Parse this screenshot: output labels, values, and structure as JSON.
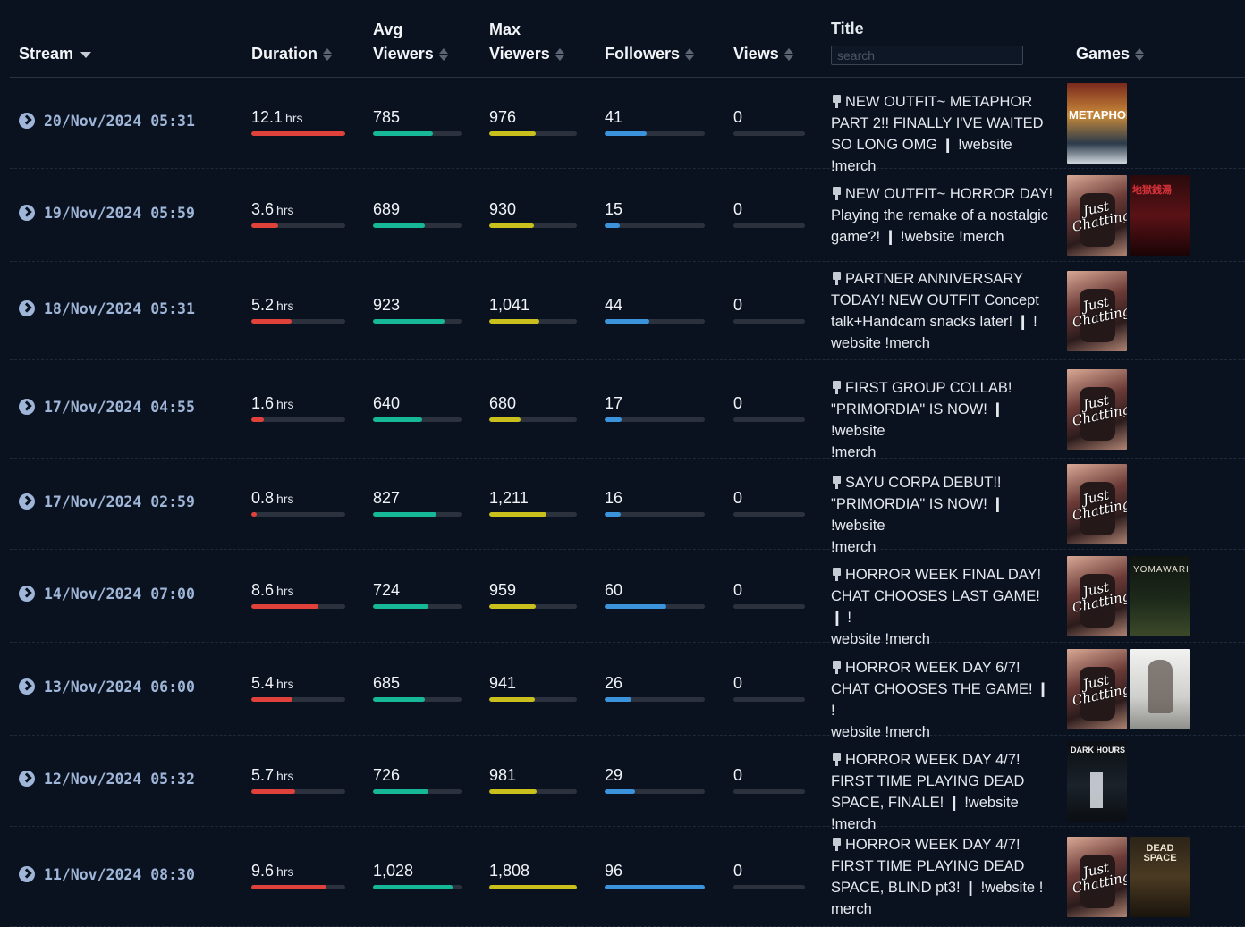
{
  "header": {
    "stream": "Stream",
    "duration": "Duration",
    "avg_viewers": [
      "Avg",
      "Viewers"
    ],
    "max_viewers": [
      "Max",
      "Viewers"
    ],
    "followers": "Followers",
    "views": "Views",
    "title": "Title",
    "search_placeholder": "search",
    "games": "Games"
  },
  "rows": [
    {
      "date": "20/Nov/2024 05:31",
      "duration": "12.1",
      "unit": "hrs",
      "duration_fill": 1.0,
      "avg": "785",
      "avg_fill": 0.68,
      "max": "976",
      "max_fill": 0.53,
      "followers": "41",
      "followers_fill": 0.42,
      "views": "0",
      "views_fill": 0,
      "title": [
        "NEW OUTFIT~ METAPHOR",
        "PART 2!! FINALLY I'VE WAITED",
        "SO LONG OMG ❙ !website !merch"
      ],
      "games": [
        {
          "kind": "metaphor",
          "label": "METAPHOR"
        }
      ]
    },
    {
      "date": "19/Nov/2024 05:59",
      "duration": "3.6",
      "unit": "hrs",
      "duration_fill": 0.29,
      "avg": "689",
      "avg_fill": 0.59,
      "max": "930",
      "max_fill": 0.51,
      "followers": "15",
      "followers_fill": 0.15,
      "views": "0",
      "views_fill": 0,
      "title": [
        "NEW OUTFIT~ HORROR DAY!",
        "Playing the remake of a nostalgic",
        "game?! ❙ !website !merch"
      ],
      "games": [
        {
          "kind": "chat",
          "label": "Just Chatting"
        },
        {
          "kind": "jigoku",
          "label": "地獄銭湯"
        }
      ]
    },
    {
      "date": "18/Nov/2024 05:31",
      "duration": "5.2",
      "unit": "hrs",
      "duration_fill": 0.43,
      "avg": "923",
      "avg_fill": 0.81,
      "max": "1,041",
      "max_fill": 0.57,
      "followers": "44",
      "followers_fill": 0.45,
      "views": "0",
      "views_fill": 0,
      "title": [
        "PARTNER ANNIVERSARY",
        "TODAY! NEW OUTFIT Concept",
        "talk+Handcam snacks later! ❙ !",
        "website !merch"
      ],
      "games": [
        {
          "kind": "chat",
          "label": "Just Chatting"
        }
      ]
    },
    {
      "date": "17/Nov/2024 04:55",
      "duration": "1.6",
      "unit": "hrs",
      "duration_fill": 0.13,
      "avg": "640",
      "avg_fill": 0.56,
      "max": "680",
      "max_fill": 0.36,
      "followers": "17",
      "followers_fill": 0.17,
      "views": "0",
      "views_fill": 0,
      "title": [
        "FIRST GROUP COLLAB!",
        "\"PRIMORDIA\" IS NOW! ❙ !website",
        "!merch"
      ],
      "games": [
        {
          "kind": "chat",
          "label": "Just Chatting"
        }
      ]
    },
    {
      "date": "17/Nov/2024 02:59",
      "duration": "0.8",
      "unit": "hrs",
      "duration_fill": 0.06,
      "avg": "827",
      "avg_fill": 0.72,
      "max": "1,211",
      "max_fill": 0.65,
      "followers": "16",
      "followers_fill": 0.16,
      "views": "0",
      "views_fill": 0,
      "title": [
        "SAYU CORPA DEBUT!!",
        "\"PRIMORDIA\" IS NOW! ❙ !website",
        "!merch"
      ],
      "games": [
        {
          "kind": "chat",
          "label": "Just Chatting"
        }
      ]
    },
    {
      "date": "14/Nov/2024 07:00",
      "duration": "8.6",
      "unit": "hrs",
      "duration_fill": 0.71,
      "avg": "724",
      "avg_fill": 0.63,
      "max": "959",
      "max_fill": 0.53,
      "followers": "60",
      "followers_fill": 0.62,
      "views": "0",
      "views_fill": 0,
      "title": [
        "HORROR WEEK FINAL DAY!",
        "CHAT CHOOSES LAST GAME! ❙ !",
        "website !merch"
      ],
      "games": [
        {
          "kind": "chat",
          "label": "Just Chatting"
        },
        {
          "kind": "yomawari",
          "label": "YOMAWARI"
        }
      ]
    },
    {
      "date": "13/Nov/2024 06:00",
      "duration": "5.4",
      "unit": "hrs",
      "duration_fill": 0.44,
      "avg": "685",
      "avg_fill": 0.59,
      "max": "941",
      "max_fill": 0.52,
      "followers": "26",
      "followers_fill": 0.27,
      "views": "0",
      "views_fill": 0,
      "title": [
        "HORROR WEEK DAY 6/7!",
        "CHAT CHOOSES THE GAME! ❙ !",
        "website !merch"
      ],
      "games": [
        {
          "kind": "chat",
          "label": "Just Chatting"
        },
        {
          "kind": "sh2",
          "label": ""
        }
      ]
    },
    {
      "date": "12/Nov/2024 05:32",
      "duration": "5.7",
      "unit": "hrs",
      "duration_fill": 0.47,
      "avg": "726",
      "avg_fill": 0.63,
      "max": "981",
      "max_fill": 0.54,
      "followers": "29",
      "followers_fill": 0.3,
      "views": "0",
      "views_fill": 0,
      "title": [
        "HORROR WEEK DAY 4/7!",
        "FIRST TIME PLAYING DEAD",
        "SPACE, FINALE! ❙ !website !merch"
      ],
      "games": [
        {
          "kind": "darkhours",
          "label": "DARK HOURS"
        }
      ]
    },
    {
      "date": "11/Nov/2024 08:30",
      "duration": "9.6",
      "unit": "hrs",
      "duration_fill": 0.8,
      "avg": "1,028",
      "avg_fill": 0.9,
      "max": "1,808",
      "max_fill": 1.0,
      "followers": "96",
      "followers_fill": 1.0,
      "views": "0",
      "views_fill": 0,
      "title": [
        "HORROR WEEK DAY 4/7!",
        "FIRST TIME PLAYING DEAD",
        "SPACE, BLIND pt3! ❙ !website !",
        "merch"
      ],
      "games": [
        {
          "kind": "chat",
          "label": "Just Chatting"
        },
        {
          "kind": "deadspace",
          "label": "DEAD SPACE"
        }
      ]
    }
  ]
}
